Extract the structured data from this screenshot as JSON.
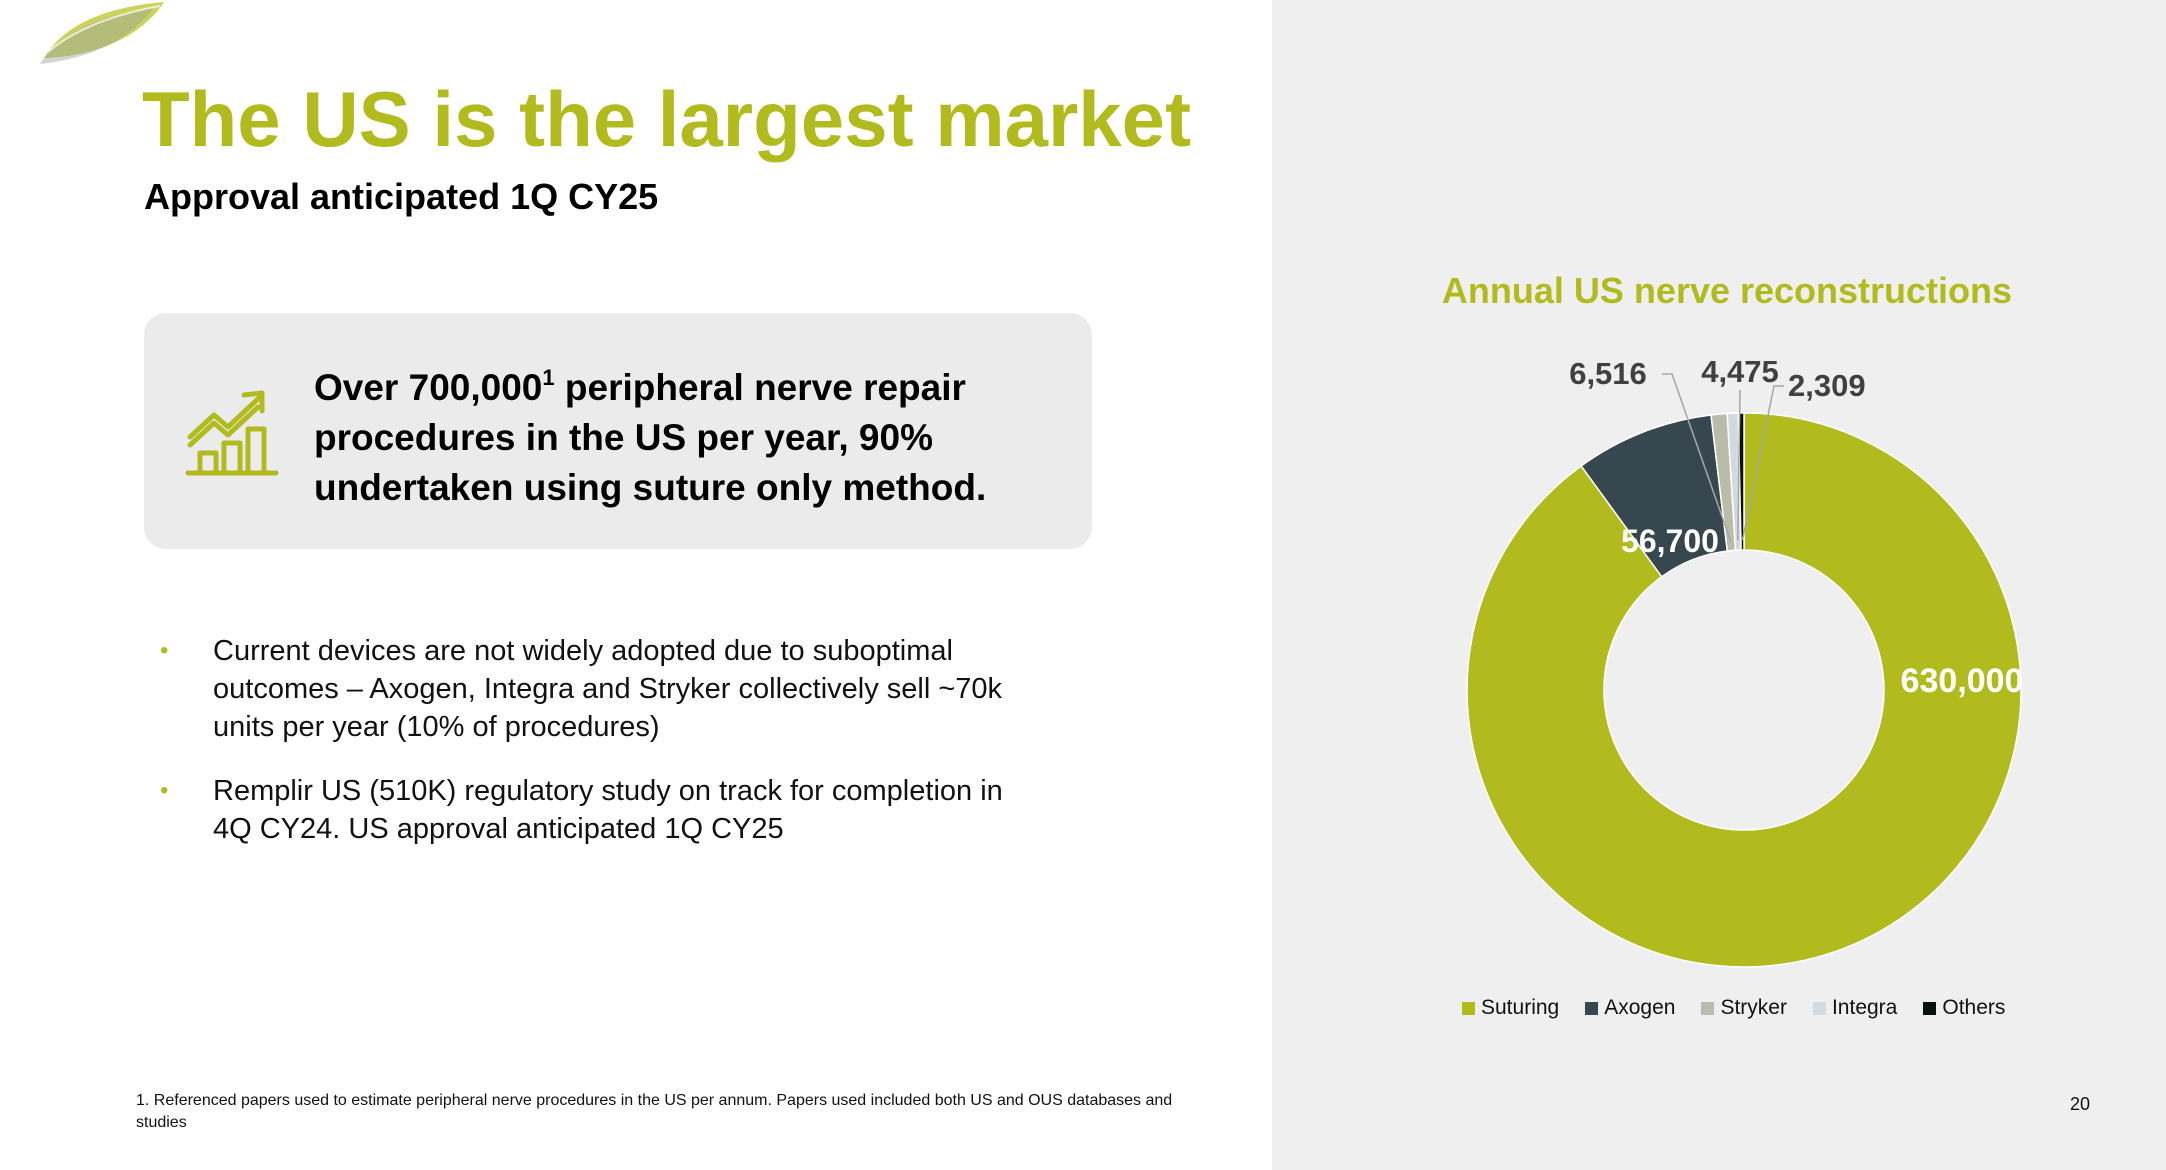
{
  "slide": {
    "title": "The US is the largest market",
    "subtitle": "Approval anticipated 1Q CY25",
    "page_number": "20"
  },
  "callout": {
    "text_before_sup": "Over 700,000",
    "sup": "1",
    "text_after_sup": " peripheral nerve repair procedures in the US per year, 90% undertaken using suture only method.",
    "icon": "growth-chart-icon"
  },
  "bullets": [
    {
      "marker": "•",
      "text": "Current devices are not widely adopted due to suboptimal outcomes – Axogen, Integra and Stryker collectively sell ~70k units per year (10% of procedures)"
    },
    {
      "marker": "•",
      "text": "Remplir US (510K) regulatory study on track for completion in 4Q CY24. US approval anticipated 1Q CY25"
    }
  ],
  "footnote": "1. Referenced papers used to estimate peripheral nerve procedures in the US per annum. Papers used included both US and OUS databases and studies",
  "colors": {
    "accent": "#b2bb1e",
    "panel": "#efefef",
    "callout": "#ebebeb"
  },
  "chart_data": {
    "type": "pie",
    "variant": "donut",
    "title": "Annual US nerve reconstructions",
    "categories": [
      "Suturing",
      "Axogen",
      "Stryker",
      "Integra",
      "Others"
    ],
    "values": [
      630000,
      56700,
      6516,
      4475,
      2309
    ],
    "labels": [
      "630,000",
      "56,700",
      "6,516",
      "4,475",
      "2,309"
    ],
    "colors": [
      "#b2bb1e",
      "#37474f",
      "#b8bca8",
      "#d3dadf",
      "#0a0f12"
    ],
    "legend_position": "bottom"
  }
}
